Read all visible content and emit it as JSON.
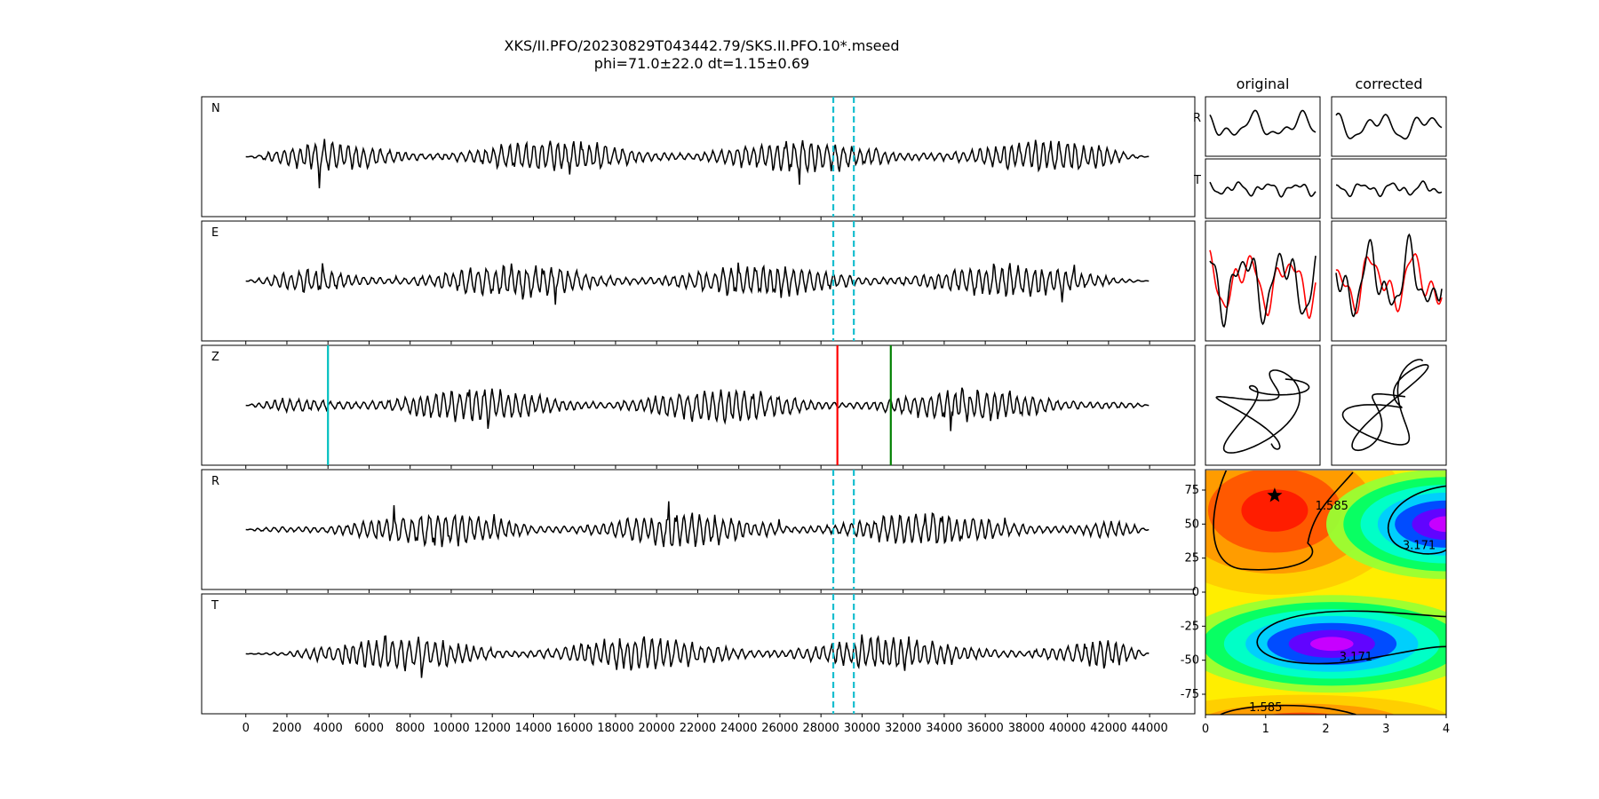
{
  "figure": {
    "title_line1": "XKS/II.PFO/20230829T043442.79/SKS.II.PFO.10*.mseed",
    "title_line2": "phi=71.0±22.0 dt=1.15±0.69"
  },
  "colors": {
    "trace": "#000000",
    "window_line": "#17becf",
    "pick_cyan": "#00bfbf",
    "pick_red": "#ff0000",
    "pick_green": "#008000",
    "particle_red": "#ff0000",
    "contour": "#000000",
    "star": "#000000"
  },
  "chart_data": [
    {
      "type": "line",
      "name": "seismograms",
      "channels": [
        "N",
        "E",
        "Z",
        "R",
        "T"
      ],
      "x_ticks": [
        0,
        2000,
        4000,
        6000,
        8000,
        10000,
        12000,
        14000,
        16000,
        18000,
        20000,
        22000,
        24000,
        26000,
        28000,
        30000,
        32000,
        34000,
        36000,
        38000,
        40000,
        42000,
        44000
      ],
      "xlim": [
        -2150,
        46200
      ],
      "trace_extent": [
        0,
        44000
      ],
      "analysis_window": [
        28600,
        29600
      ],
      "z_picks": [
        {
          "x": 4000,
          "color": "cyan"
        },
        {
          "x": 28800,
          "color": "red"
        },
        {
          "x": 31400,
          "color": "green"
        }
      ]
    },
    {
      "type": "line",
      "name": "particle-motion-comparison",
      "column_titles": [
        "original",
        "corrected"
      ],
      "row_labels": [
        "R",
        "T"
      ]
    },
    {
      "type": "heatmap",
      "name": "energy-grid",
      "x_ticks": [
        0,
        1,
        2,
        3,
        4
      ],
      "y_ticks": [
        75,
        50,
        25,
        0,
        -25,
        -50,
        -75
      ],
      "xlim": [
        0,
        4
      ],
      "ylim": [
        -90,
        90
      ],
      "contour_labels": [
        {
          "text": "1.585",
          "dt": 2.1,
          "phi": 63
        },
        {
          "text": "3.171",
          "dt": 3.55,
          "phi": 34
        },
        {
          "text": "3.171",
          "dt": 2.5,
          "phi": -48
        },
        {
          "text": "1.585",
          "dt": 1.0,
          "phi": -85
        }
      ],
      "best_fit": {
        "dt": 1.15,
        "phi": 71.0
      }
    }
  ]
}
